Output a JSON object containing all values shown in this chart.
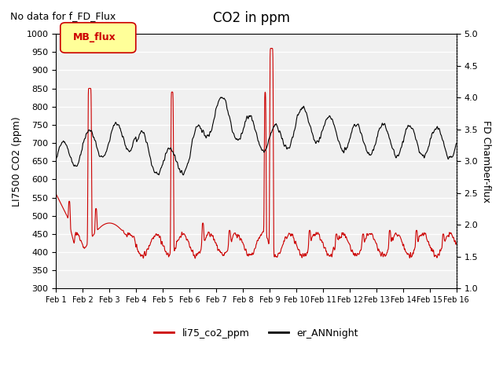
{
  "title": "CO2 in ppm",
  "subtitle": "No data for f_FD_Flux",
  "ylabel_left": "LI7500 CO2 (ppm)",
  "ylabel_right": "FD Chamber-flux",
  "ylim_left": [
    300,
    1000
  ],
  "ylim_right": [
    1.0,
    5.0
  ],
  "yticks_left": [
    300,
    350,
    400,
    450,
    500,
    550,
    600,
    650,
    700,
    750,
    800,
    850,
    900,
    950,
    1000
  ],
  "yticks_right": [
    1.0,
    1.5,
    2.0,
    2.5,
    3.0,
    3.5,
    4.0,
    4.5,
    5.0
  ],
  "xticklabels": [
    "Feb 1",
    "Feb 2",
    "Feb 3",
    "Feb 4",
    "Feb 5",
    "Feb 6",
    "Feb 7",
    "Feb 8",
    "Feb 9",
    "Feb 10",
    "Feb 11",
    "Feb 12",
    "Feb 13",
    "Feb 14",
    "Feb 15",
    "Feb 16"
  ],
  "legend_box_label": "MB_flux",
  "legend_box_color": "#ffff99",
  "legend_box_border": "#cc0000",
  "line1_color": "#cc0000",
  "line1_label": "li75_co2_ppm",
  "line2_color": "#000000",
  "line2_label": "er_ANNnight",
  "background_color": "#f0f0f0",
  "grid_color": "#ffffff"
}
